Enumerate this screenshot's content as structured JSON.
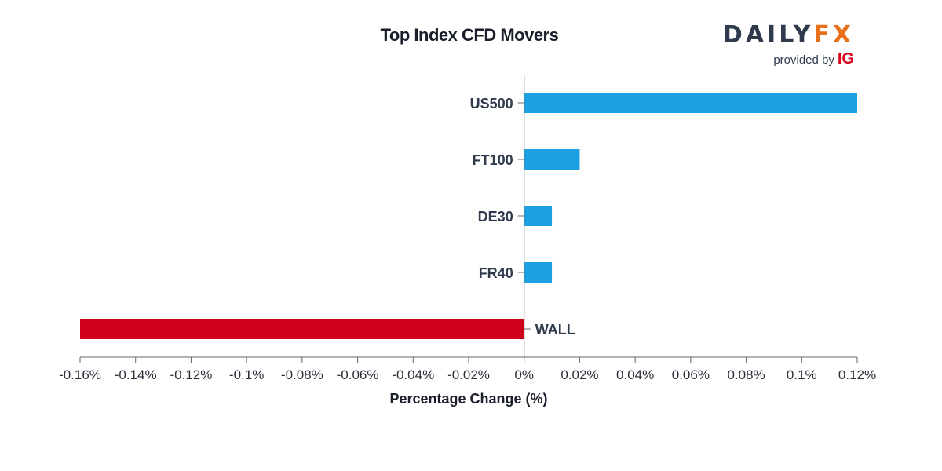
{
  "brand": {
    "name_left": "DAILY",
    "name_right": "FX",
    "provided_by": "provided by",
    "provider": "IG",
    "colors": {
      "name": "#2f3a4d",
      "fx": "#e8701a",
      "provider": "#d7001c"
    }
  },
  "chart_data": {
    "type": "bar",
    "orientation": "horizontal",
    "title": "Top Index CFD Movers",
    "xlabel": "Percentage Change (%)",
    "ylabel": "",
    "categories": [
      "US500",
      "FT100",
      "DE30",
      "FR40",
      "WALL"
    ],
    "values": [
      0.12,
      0.02,
      0.01,
      0.01,
      -0.16
    ],
    "xlim": [
      -0.16,
      0.12
    ],
    "xticks": [
      -0.16,
      -0.14,
      -0.12,
      -0.1,
      -0.08,
      -0.06,
      -0.04,
      -0.02,
      0,
      0.02,
      0.04,
      0.06,
      0.08,
      0.1,
      0.12
    ],
    "xtick_labels": [
      "-0.16%",
      "-0.14%",
      "-0.12%",
      "-0.1%",
      "-0.08%",
      "-0.06%",
      "-0.04%",
      "-0.02%",
      "0%",
      "0.02%",
      "0.04%",
      "0.06%",
      "0.08%",
      "0.1%",
      "0.12%"
    ],
    "colors": {
      "positive": "#1ba1e2",
      "negative": "#d0021b"
    },
    "grid": false,
    "legend": "none"
  }
}
